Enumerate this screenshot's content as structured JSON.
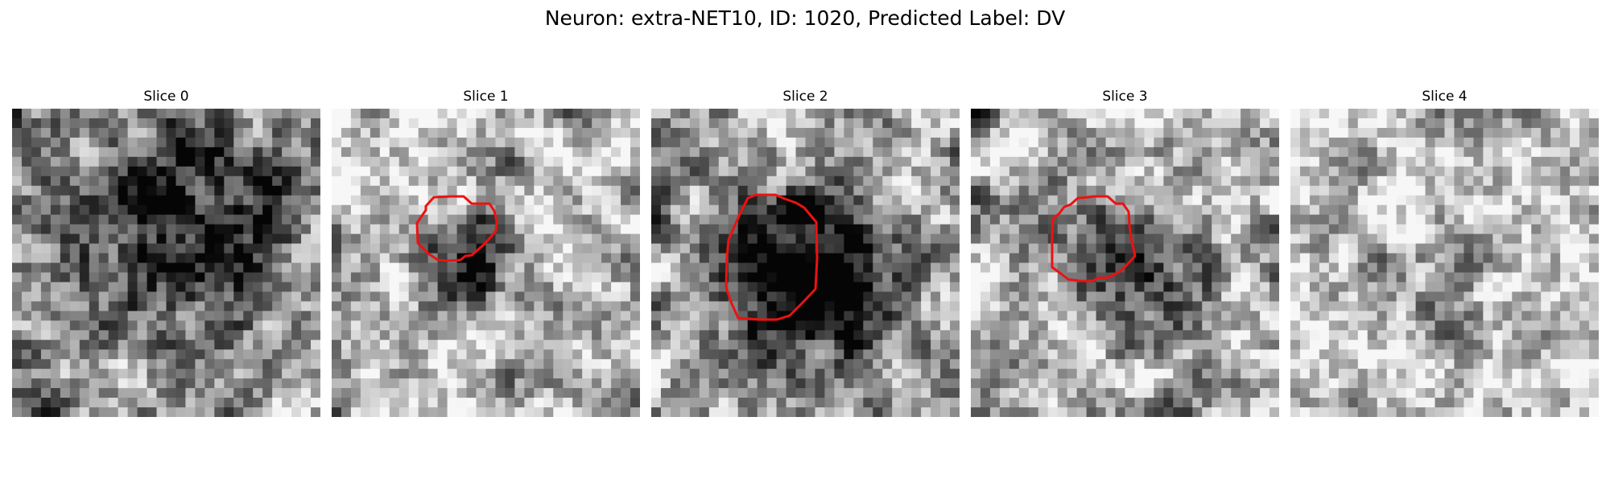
{
  "figure": {
    "title": "Neuron: extra-NET10, ID: 1020, Predicted Label: DV"
  },
  "slices": [
    {
      "label": "Slice 0",
      "outline": false,
      "seed": 11,
      "blob": [
        0.55,
        0.35,
        0.35,
        0.5
      ],
      "bright": 0.62
    },
    {
      "label": "Slice 1",
      "outline": true,
      "seed": 23,
      "blob": [
        0.45,
        0.48,
        0.16,
        0.55
      ],
      "bright": 0.7
    },
    {
      "label": "Slice 2",
      "outline": true,
      "seed": 37,
      "blob": [
        0.52,
        0.55,
        0.24,
        0.85
      ],
      "bright": 0.62
    },
    {
      "label": "Slice 3",
      "outline": true,
      "seed": 41,
      "blob": [
        0.52,
        0.52,
        0.2,
        0.6
      ],
      "bright": 0.7
    },
    {
      "label": "Slice 4",
      "outline": false,
      "seed": 53,
      "blob": [
        0.45,
        0.55,
        0.18,
        0.3
      ],
      "bright": 0.78
    }
  ],
  "style": {
    "outline_color": "#ee1111"
  }
}
